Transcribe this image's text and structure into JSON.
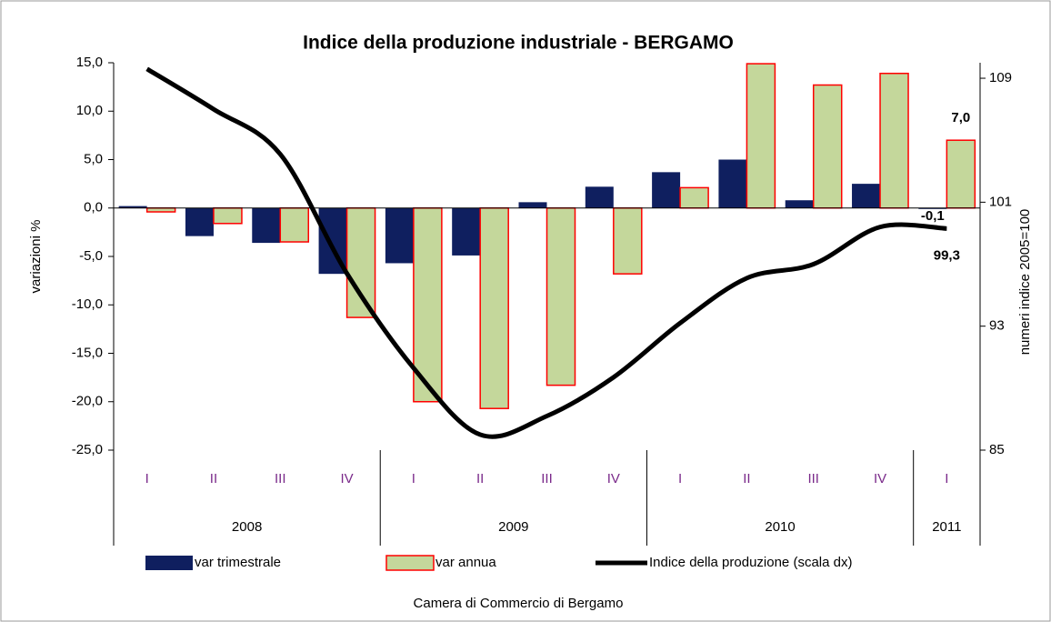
{
  "chart_data": {
    "type": "bar_line",
    "title": "Indice della produzione industriale - BERGAMO",
    "y_label": "variazioni %",
    "y2_label": "numeri indice 2005=100",
    "source": "Camera di Commercio di Bergamo",
    "groups": [
      {
        "label": "2008",
        "categories": [
          "I",
          "II",
          "III",
          "IV"
        ]
      },
      {
        "label": "2009",
        "categories": [
          "I",
          "II",
          "III",
          "IV"
        ]
      },
      {
        "label": "2010",
        "categories": [
          "I",
          "II",
          "III",
          "IV"
        ]
      },
      {
        "label": "2011",
        "categories": [
          "I"
        ]
      }
    ],
    "ylim": [
      -25,
      15
    ],
    "yticks": [
      {
        "value": -25,
        "label": "-25,0"
      },
      {
        "value": -20,
        "label": "-20,0"
      },
      {
        "value": -15,
        "label": "-15,0"
      },
      {
        "value": -10,
        "label": "-10,0"
      },
      {
        "value": -5,
        "label": "-5,0"
      },
      {
        "value": 0,
        "label": "0,0"
      },
      {
        "value": 5,
        "label": "5,0"
      },
      {
        "value": 10,
        "label": "10,0"
      },
      {
        "value": 15,
        "label": "15,0"
      }
    ],
    "y2lim": [
      85,
      110
    ],
    "y2ticks": [
      85,
      93,
      101,
      109
    ],
    "series": [
      {
        "name": "var trimestrale",
        "type": "bar",
        "color": "#0f1f5f",
        "values": [
          0.2,
          -2.9,
          -3.6,
          -6.8,
          -5.7,
          -4.9,
          0.6,
          2.2,
          3.7,
          5.0,
          0.8,
          2.5,
          -0.1
        ],
        "value_labels": [
          null,
          null,
          null,
          null,
          null,
          null,
          null,
          null,
          null,
          null,
          null,
          null,
          "-0,1"
        ]
      },
      {
        "name": "var  annua",
        "type": "bar",
        "color": "#c4d79b",
        "edge_color": "#ff0000",
        "values": [
          -0.4,
          -1.6,
          -3.5,
          -11.3,
          -20.0,
          -20.7,
          -18.3,
          -6.8,
          2.1,
          14.9,
          12.7,
          13.9,
          7.0
        ],
        "value_labels": [
          null,
          null,
          null,
          null,
          null,
          null,
          null,
          null,
          null,
          null,
          null,
          null,
          "7,0"
        ]
      },
      {
        "name": "Indice della produzione (scala dx)",
        "type": "line",
        "axis": "y2",
        "color": "#000000",
        "values": [
          109.6,
          107.0,
          104.1,
          96.4,
          90.3,
          86.0,
          87.2,
          89.7,
          93.2,
          96.1,
          97.0,
          99.4,
          99.3
        ],
        "value_labels": [
          null,
          null,
          null,
          null,
          null,
          null,
          null,
          null,
          null,
          null,
          null,
          null,
          "99,3"
        ]
      }
    ]
  }
}
